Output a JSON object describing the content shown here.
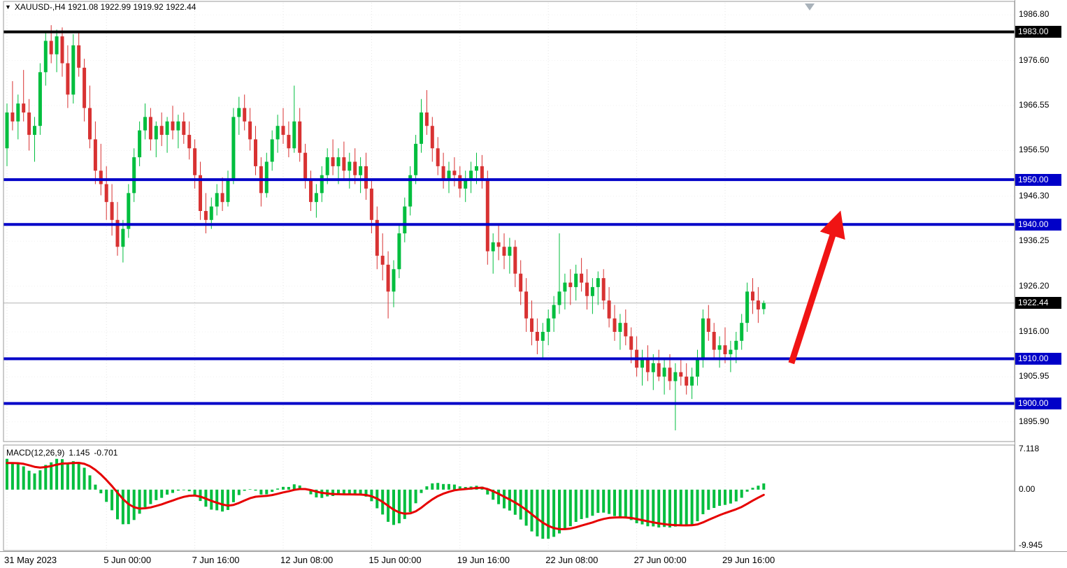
{
  "legend": {
    "collapse_icon": "▼",
    "symbol_line": "XAUUSD-,H4 1921.08 1922.99 1919.92 1922.44"
  },
  "colors": {
    "bull": "#00BE3E",
    "bear": "#D83232",
    "level_blue": "#0000C8",
    "level_black": "#000000",
    "signal_red": "#E60000",
    "arrow_red": "#F01414",
    "badge_text": "#FFFFFF",
    "grid": "#E4E4E4",
    "separator": "#9A9A9A",
    "current_price_line": "#B4B4B4"
  },
  "current_price": 1922.44,
  "price_axis": {
    "plain_labels": [
      "1986.80",
      "1976.60",
      "1966.55",
      "1956.50",
      "1946.30",
      "1936.25",
      "1926.20",
      "1916.00",
      "1905.95",
      "1895.90"
    ],
    "badges": [
      {
        "value": "1983.00",
        "type": "black"
      },
      {
        "value": "1950.00",
        "type": "blue"
      },
      {
        "value": "1940.00",
        "type": "blue"
      },
      {
        "value": "1922.44",
        "type": "black"
      },
      {
        "value": "1910.00",
        "type": "blue"
      },
      {
        "value": "1900.00",
        "type": "blue"
      }
    ]
  },
  "levels": [
    {
      "price": 1983.0,
      "color": "black",
      "width": 4
    },
    {
      "price": 1950.0,
      "color": "blue",
      "width": 4
    },
    {
      "price": 1940.0,
      "color": "blue",
      "width": 4
    },
    {
      "price": 1910.0,
      "color": "blue",
      "width": 4
    },
    {
      "price": 1900.0,
      "color": "blue",
      "width": 4
    }
  ],
  "arrow": {
    "from": {
      "index": 142,
      "price": 1909.0
    },
    "to": {
      "index": 150.5,
      "price": 1941.5
    }
  },
  "macd_panel": {
    "name": "MACD(12,26,9)",
    "main_value": "1.145",
    "signal_value": "-0.701",
    "scale_labels": [
      "7.118",
      "0.00",
      "-9.945"
    ]
  },
  "time_axis": [
    {
      "label": "31 May 2023",
      "index": 0
    },
    {
      "label": "5 Jun 00:00",
      "index": 18
    },
    {
      "label": "7 Jun 16:00",
      "index": 34
    },
    {
      "label": "12 Jun 08:00",
      "index": 50
    },
    {
      "label": "15 Jun 00:00",
      "index": 66
    },
    {
      "label": "19 Jun 16:00",
      "index": 82
    },
    {
      "label": "22 Jun 08:00",
      "index": 98
    },
    {
      "label": "27 Jun 00:00",
      "index": 114
    },
    {
      "label": "29 Jun 16:00",
      "index": 130
    }
  ],
  "chart_data": {
    "type": "candlestick",
    "symbol": "XAUUSD-",
    "timeframe": "H4",
    "ylim": [
      1891.5,
      1989.5
    ],
    "support_resistance": [
      1983.0,
      1950.0,
      1940.0,
      1910.0,
      1900.0
    ],
    "indicator": {
      "name": "MACD",
      "fast": 12,
      "slow": 26,
      "signal": 9,
      "display_values": [
        1.145,
        -0.701
      ],
      "scale": [
        7.118,
        0.0,
        -9.945
      ],
      "ylim": [
        -10.5,
        7.5
      ]
    },
    "ohlc": [
      [
        1957,
        1967,
        1953,
        1965
      ],
      [
        1965,
        1972,
        1961,
        1963
      ],
      [
        1963,
        1969,
        1959,
        1967
      ],
      [
        1967,
        1974.5,
        1963,
        1965
      ],
      [
        1965,
        1968,
        1956.5,
        1960
      ],
      [
        1960,
        1964,
        1954,
        1962
      ],
      [
        1962,
        1976,
        1960,
        1974
      ],
      [
        1974,
        1983,
        1971,
        1981
      ],
      [
        1981,
        1984.5,
        1976,
        1978
      ],
      [
        1978,
        1983.5,
        1974,
        1982
      ],
      [
        1982,
        1984,
        1973,
        1976
      ],
      [
        1976,
        1980,
        1966,
        1969
      ],
      [
        1969,
        1982.5,
        1967,
        1980
      ],
      [
        1980,
        1983,
        1973,
        1975
      ],
      [
        1975,
        1977,
        1963,
        1966
      ],
      [
        1966,
        1971,
        1957,
        1959
      ],
      [
        1959,
        1963,
        1949,
        1952
      ],
      [
        1952,
        1958,
        1946.5,
        1949
      ],
      [
        1949,
        1953,
        1941,
        1945
      ],
      [
        1945,
        1949,
        1937.5,
        1941
      ],
      [
        1941,
        1945,
        1933,
        1935
      ],
      [
        1935,
        1941,
        1931.5,
        1939
      ],
      [
        1939,
        1949,
        1937,
        1947
      ],
      [
        1947,
        1957,
        1945,
        1955
      ],
      [
        1955,
        1963,
        1953,
        1961
      ],
      [
        1961,
        1967,
        1959,
        1964
      ],
      [
        1964,
        1966,
        1956.5,
        1959
      ],
      [
        1959,
        1963,
        1955,
        1962
      ],
      [
        1962,
        1965,
        1957.5,
        1960
      ],
      [
        1960,
        1964,
        1956,
        1963
      ],
      [
        1963,
        1966.5,
        1959,
        1961
      ],
      [
        1961,
        1964.5,
        1957,
        1963
      ],
      [
        1963,
        1965,
        1958,
        1960
      ],
      [
        1960,
        1963,
        1954.5,
        1957
      ],
      [
        1957,
        1959,
        1948,
        1951
      ],
      [
        1951,
        1954,
        1941,
        1943
      ],
      [
        1943,
        1947,
        1938,
        1941
      ],
      [
        1941,
        1946,
        1939,
        1944
      ],
      [
        1944,
        1949,
        1942,
        1947
      ],
      [
        1947,
        1950.5,
        1943,
        1945
      ],
      [
        1945,
        1952,
        1944,
        1950
      ],
      [
        1950,
        1966,
        1949,
        1964
      ],
      [
        1964,
        1968.5,
        1960,
        1966
      ],
      [
        1966,
        1969,
        1961,
        1963
      ],
      [
        1963,
        1966,
        1956.5,
        1959
      ],
      [
        1959,
        1962,
        1951,
        1953
      ],
      [
        1953,
        1955,
        1944,
        1947
      ],
      [
        1947,
        1956,
        1946,
        1954
      ],
      [
        1954,
        1961,
        1952,
        1959
      ],
      [
        1959,
        1964.5,
        1956,
        1962
      ],
      [
        1962,
        1966,
        1958,
        1960
      ],
      [
        1960,
        1963,
        1955,
        1957
      ],
      [
        1957,
        1971,
        1956,
        1963
      ],
      [
        1963,
        1966,
        1954,
        1956
      ],
      [
        1956,
        1958,
        1948,
        1950
      ],
      [
        1950,
        1952,
        1943,
        1945
      ],
      [
        1945,
        1949,
        1941.5,
        1947
      ],
      [
        1947,
        1953,
        1945,
        1951
      ],
      [
        1951,
        1957,
        1949,
        1955
      ],
      [
        1955,
        1959,
        1951,
        1953
      ],
      [
        1953,
        1957,
        1949,
        1955
      ],
      [
        1955,
        1958.5,
        1950,
        1952
      ],
      [
        1952,
        1956,
        1948,
        1954
      ],
      [
        1954,
        1957,
        1949,
        1951
      ],
      [
        1951,
        1955,
        1947,
        1953
      ],
      [
        1953,
        1956,
        1945.5,
        1948
      ],
      [
        1948,
        1950,
        1938,
        1941
      ],
      [
        1941,
        1944,
        1930,
        1933
      ],
      [
        1933,
        1938,
        1927.5,
        1931
      ],
      [
        1931,
        1934,
        1919,
        1925
      ],
      [
        1925,
        1932,
        1921.5,
        1930
      ],
      [
        1930,
        1940,
        1928,
        1938
      ],
      [
        1938,
        1946,
        1936,
        1944
      ],
      [
        1944,
        1953,
        1942,
        1951
      ],
      [
        1951,
        1960,
        1949,
        1958
      ],
      [
        1958,
        1968,
        1956,
        1965
      ],
      [
        1965,
        1970,
        1960,
        1962
      ],
      [
        1962,
        1964,
        1954,
        1957
      ],
      [
        1957,
        1959.5,
        1951,
        1953
      ],
      [
        1953,
        1956,
        1948,
        1950
      ],
      [
        1950,
        1954,
        1947,
        1952
      ],
      [
        1952,
        1955,
        1948.5,
        1951
      ],
      [
        1951,
        1953,
        1946,
        1948
      ],
      [
        1948,
        1952,
        1945,
        1950
      ],
      [
        1950,
        1954,
        1947,
        1952
      ],
      [
        1952,
        1956,
        1949,
        1953
      ],
      [
        1953,
        1955.5,
        1948,
        1950
      ],
      [
        1950,
        1952,
        1931,
        1934
      ],
      [
        1934,
        1938,
        1929,
        1936
      ],
      [
        1936,
        1940,
        1932,
        1935
      ],
      [
        1935,
        1938,
        1930,
        1933
      ],
      [
        1933,
        1937,
        1929,
        1935
      ],
      [
        1935,
        1936.5,
        1926,
        1929
      ],
      [
        1929,
        1932,
        1922,
        1925
      ],
      [
        1925,
        1928,
        1916,
        1919
      ],
      [
        1919,
        1923,
        1913,
        1916
      ],
      [
        1916,
        1919,
        1911,
        1914
      ],
      [
        1914,
        1918,
        1910,
        1916
      ],
      [
        1916,
        1921,
        1913,
        1919
      ],
      [
        1919,
        1924,
        1916,
        1922
      ],
      [
        1922,
        1938,
        1920,
        1925
      ],
      [
        1925,
        1929,
        1921,
        1927
      ],
      [
        1927,
        1930,
        1922,
        1926
      ],
      [
        1926,
        1931,
        1923,
        1929
      ],
      [
        1929,
        1932.5,
        1925,
        1927
      ],
      [
        1927,
        1930,
        1921,
        1924
      ],
      [
        1924,
        1928,
        1920,
        1926
      ],
      [
        1926,
        1929.5,
        1922,
        1928
      ],
      [
        1928,
        1930,
        1921,
        1923
      ],
      [
        1923,
        1926,
        1917,
        1919
      ],
      [
        1919,
        1922,
        1914,
        1916
      ],
      [
        1916,
        1920,
        1912,
        1918
      ],
      [
        1918,
        1921,
        1913,
        1915
      ],
      [
        1915,
        1917,
        1909,
        1912
      ],
      [
        1912,
        1915,
        1906,
        1908
      ],
      [
        1908,
        1912,
        1904,
        1910
      ],
      [
        1910,
        1913,
        1905,
        1907
      ],
      [
        1907,
        1911,
        1903,
        1909
      ],
      [
        1909,
        1912,
        1905,
        1906
      ],
      [
        1906,
        1910,
        1902,
        1908
      ],
      [
        1908,
        1911,
        1903,
        1905
      ],
      [
        1905,
        1909,
        1894,
        1907
      ],
      [
        1907,
        1910,
        1904,
        1906
      ],
      [
        1906,
        1909,
        1902,
        1904
      ],
      [
        1904,
        1908,
        1901,
        1906
      ],
      [
        1906,
        1912,
        1904,
        1910
      ],
      [
        1910,
        1921,
        1908,
        1919
      ],
      [
        1919,
        1922,
        1914,
        1916
      ],
      [
        1916,
        1918,
        1910,
        1912
      ],
      [
        1912,
        1915,
        1908,
        1913
      ],
      [
        1913,
        1917,
        1909,
        1911
      ],
      [
        1911,
        1914,
        1907,
        1912
      ],
      [
        1912,
        1916,
        1909,
        1914
      ],
      [
        1914,
        1920,
        1912,
        1918
      ],
      [
        1918,
        1927,
        1916,
        1925
      ],
      [
        1925,
        1928,
        1920,
        1923
      ],
      [
        1923,
        1926,
        1918,
        1921
      ],
      [
        1921.08,
        1922.99,
        1919.92,
        1922.44
      ]
    ]
  }
}
